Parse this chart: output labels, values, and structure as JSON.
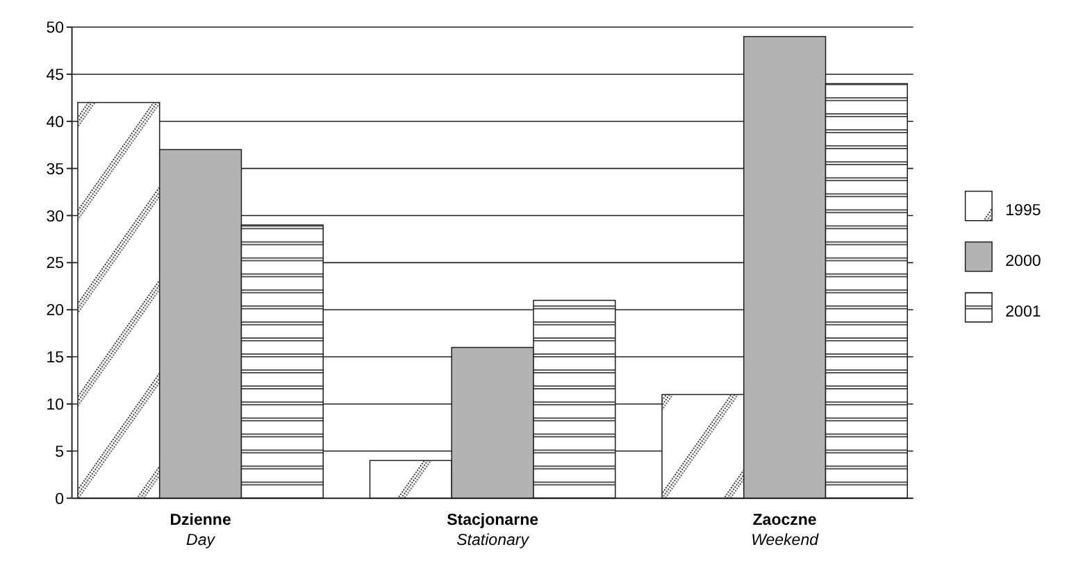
{
  "chart_data": {
    "type": "bar",
    "categories": [
      "Dzienne\nDay",
      "Stacjonarne\nStationary",
      "Zaoczne\nWeekend"
    ],
    "series": [
      {
        "name": "1995",
        "color": "#222222",
        "values": [
          42,
          4,
          11
        ]
      },
      {
        "name": "2000",
        "color": "#b3b3b3",
        "values": [
          37,
          16,
          49
        ]
      },
      {
        "name": "2001",
        "color": "#222222",
        "values": [
          29,
          21,
          44
        ]
      }
    ],
    "ylim": [
      0,
      50
    ],
    "yticks": [
      0,
      5,
      10,
      15,
      20,
      25,
      30,
      35,
      40,
      45,
      50
    ],
    "grid": "y",
    "legend": "right"
  }
}
